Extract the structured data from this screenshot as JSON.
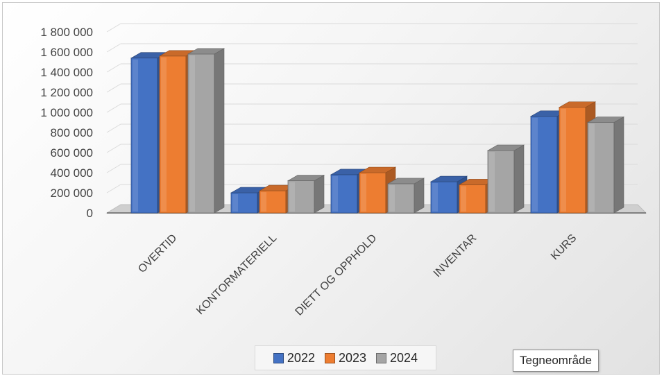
{
  "chart_data": {
    "type": "bar",
    "subtype": "3d-clustered-column",
    "title": "",
    "xlabel": "",
    "ylabel": "",
    "ylim": [
      0,
      1800000
    ],
    "ytick_labels": [
      "0",
      "200 000",
      "400 000",
      "600 000",
      "800 000",
      "1 000 000",
      "1 200 000",
      "1 400 000",
      "1 600 000",
      "1 800 000"
    ],
    "categories": [
      "OVERTID",
      "KONTORMATERIELL",
      "DIETT OG OPPHOLD",
      "INVENTAR",
      "KURS"
    ],
    "series": [
      {
        "name": "2022",
        "color": "#4472C4",
        "values": [
          1540000,
          200000,
          380000,
          310000,
          960000
        ]
      },
      {
        "name": "2023",
        "color": "#ED7D31",
        "values": [
          1560000,
          220000,
          400000,
          280000,
          1050000
        ]
      },
      {
        "name": "2024",
        "color": "#A5A5A5",
        "values": [
          1580000,
          320000,
          290000,
          620000,
          900000
        ]
      }
    ],
    "grid": true,
    "legend_position": "bottom"
  },
  "tooltip_text": "Tegneområde"
}
